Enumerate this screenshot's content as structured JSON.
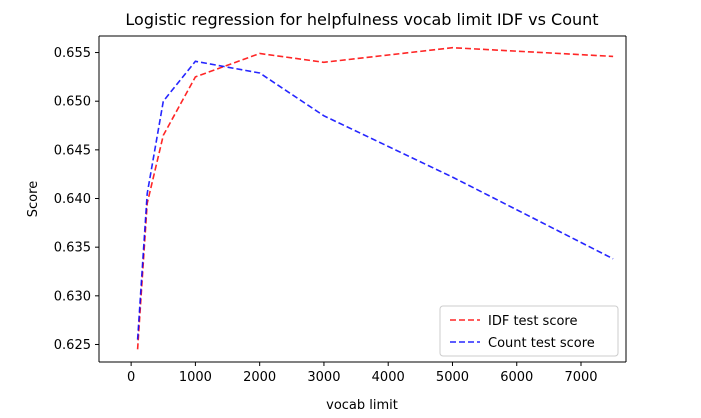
{
  "chart_data": {
    "type": "line",
    "title": "Logistic regression for helpfulness vocab limit IDF vs Count",
    "xlabel": "vocab limit",
    "ylabel": "Score",
    "xlim": [
      -500,
      7700
    ],
    "ylim": [
      0.6232,
      0.6567
    ],
    "xticks": [
      0,
      1000,
      2000,
      3000,
      4000,
      5000,
      6000,
      7000
    ],
    "xtick_labels": [
      "0",
      "1000",
      "2000",
      "3000",
      "4000",
      "5000",
      "6000",
      "7000"
    ],
    "yticks": [
      0.625,
      0.63,
      0.635,
      0.64,
      0.645,
      0.65,
      0.655
    ],
    "ytick_labels": [
      "0.625",
      "0.630",
      "0.635",
      "0.640",
      "0.645",
      "0.650",
      "0.655"
    ],
    "grid": false,
    "legend_position": "lower-right",
    "series": [
      {
        "name": "IDF test score",
        "color": "#ff0000",
        "line_style": "dashed",
        "x": [
          100,
          250,
          500,
          1000,
          2000,
          3000,
          5000,
          7500
        ],
        "y": [
          0.6245,
          0.6395,
          0.6465,
          0.6525,
          0.6549,
          0.654,
          0.6555,
          0.6546
        ]
      },
      {
        "name": "Count test score",
        "color": "#0000ff",
        "line_style": "dashed",
        "x": [
          100,
          250,
          500,
          1000,
          2000,
          3000,
          5000,
          7500
        ],
        "y": [
          0.6255,
          0.6405,
          0.65,
          0.6541,
          0.6529,
          0.6485,
          0.6422,
          0.6338
        ]
      }
    ]
  }
}
